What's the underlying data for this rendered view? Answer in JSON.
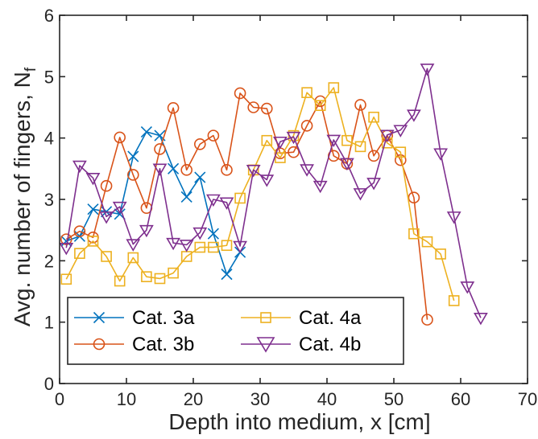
{
  "chart_data": {
    "type": "line",
    "title": "",
    "xlabel": "Depth into medium, x [cm]",
    "ylabel": "Avg. number of fingers, N",
    "ylabel_sub": "f",
    "xlim": [
      0,
      70
    ],
    "ylim": [
      0,
      6
    ],
    "xticks": [
      0,
      10,
      20,
      30,
      40,
      50,
      60,
      70
    ],
    "yticks": [
      0,
      1,
      2,
      3,
      4,
      5,
      6
    ],
    "grid": false,
    "legend_placement": "bottom-left",
    "series": [
      {
        "name": "Cat. 3a",
        "color": "#0072BD",
        "marker": "x",
        "x": [
          1,
          3,
          5,
          7,
          9,
          11,
          13,
          15,
          17,
          19,
          21,
          23,
          25,
          27
        ],
        "y": [
          2.32,
          2.4,
          2.84,
          2.8,
          2.76,
          3.7,
          4.1,
          4.04,
          3.5,
          3.04,
          3.36,
          2.44,
          1.78,
          2.14
        ]
      },
      {
        "name": "Cat. 3b",
        "color": "#D95319",
        "marker": "o",
        "x": [
          1,
          3,
          5,
          7,
          9,
          11,
          13,
          15,
          17,
          19,
          21,
          23,
          25,
          27,
          29,
          31,
          33,
          35,
          37,
          39,
          41,
          43,
          45,
          47,
          49,
          51,
          53,
          55
        ],
        "y": [
          2.35,
          2.48,
          2.38,
          3.22,
          4.01,
          3.4,
          2.86,
          3.82,
          4.49,
          3.48,
          3.9,
          4.04,
          3.48,
          4.73,
          4.5,
          4.48,
          3.75,
          3.77,
          4.2,
          4.6,
          3.71,
          3.58,
          4.54,
          3.71,
          4.04,
          3.64,
          3.03,
          1.04
        ]
      },
      {
        "name": "Cat. 4a",
        "color": "#EDB120",
        "marker": "square",
        "x": [
          1,
          3,
          5,
          7,
          9,
          11,
          13,
          15,
          17,
          19,
          21,
          23,
          25,
          27,
          29,
          31,
          33,
          35,
          37,
          39,
          41,
          43,
          45,
          47,
          49,
          51,
          53,
          55,
          57,
          59
        ],
        "y": [
          1.7,
          2.12,
          2.32,
          2.07,
          1.67,
          2.05,
          1.74,
          1.71,
          1.8,
          2.07,
          2.22,
          2.22,
          2.25,
          3.02,
          3.48,
          3.96,
          3.68,
          4.04,
          4.74,
          4.53,
          4.82,
          3.96,
          3.86,
          4.34,
          3.92,
          3.77,
          2.44,
          2.31,
          2.11,
          1.35
        ]
      },
      {
        "name": "Cat. 4b",
        "color": "#7E2F8E",
        "marker": "triangle-down",
        "x": [
          1,
          3,
          5,
          7,
          9,
          11,
          13,
          15,
          17,
          19,
          21,
          23,
          25,
          27,
          29,
          31,
          33,
          35,
          37,
          39,
          41,
          43,
          45,
          47,
          49,
          51,
          53,
          55,
          57,
          59,
          61,
          63
        ],
        "y": [
          2.21,
          3.55,
          3.35,
          2.72,
          2.88,
          2.27,
          2.5,
          3.5,
          2.29,
          2.26,
          2.46,
          3.0,
          2.95,
          2.24,
          3.48,
          3.32,
          3.94,
          4.02,
          3.49,
          3.22,
          3.97,
          3.59,
          3.1,
          3.27,
          4.05,
          4.13,
          4.38,
          5.13,
          3.75,
          2.72,
          1.58,
          1.07
        ]
      }
    ]
  }
}
